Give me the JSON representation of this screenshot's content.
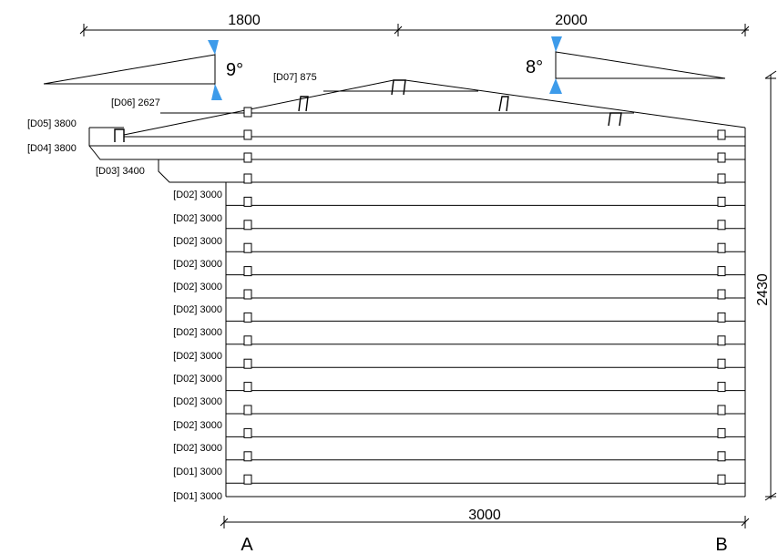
{
  "dimensions": {
    "top_left": "1800",
    "top_right": "2000",
    "right_height": "2430",
    "bottom_width": "3000"
  },
  "angles": {
    "left": "9°",
    "right": "8°"
  },
  "axes": {
    "left": "A",
    "right": "B"
  },
  "log_labels": [
    "[D07] 875",
    "[D06] 2627",
    "[D05] 3800",
    "[D04] 3800",
    "[D03] 3400",
    "[D02] 3000",
    "[D02] 3000",
    "[D02] 3000",
    "[D02] 3000",
    "[D02] 3000",
    "[D02] 3000",
    "[D02] 3000",
    "[D02] 3000",
    "[D02] 3000",
    "[D02] 3000",
    "[D02] 3000",
    "[D02] 3000",
    "[D01] 3000"
  ],
  "colors": {
    "marker": "#3d9bea",
    "line": "#000000"
  }
}
